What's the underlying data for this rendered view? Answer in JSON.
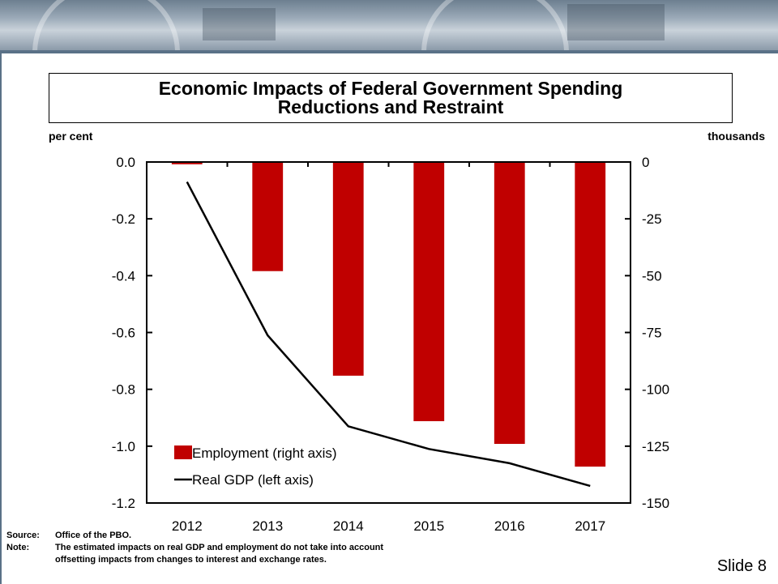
{
  "title_line1": "Economic Impacts of Federal Government Spending",
  "title_line2": "Reductions and Restraint",
  "left_unit": "per cent",
  "right_unit": "thousands",
  "source_label": "Source:",
  "source_text": "Office of the PBO.",
  "note_label": "Note:",
  "note_line1": "The estimated impacts on real GDP and employment do not take into account",
  "note_line2": "offsetting impacts from changes to interest and exchange rates.",
  "slide_label": "Slide 8",
  "chart_data": {
    "type": "bar",
    "categories": [
      "2012",
      "2013",
      "2014",
      "2015",
      "2016",
      "2017"
    ],
    "series": [
      {
        "name": "Employment (right axis)",
        "kind": "bar",
        "axis": "right",
        "color": "#c00000",
        "values": [
          -1,
          -48,
          -94,
          -114,
          -124,
          -134
        ]
      },
      {
        "name": "Real GDP (left axis)",
        "kind": "line",
        "axis": "left",
        "color": "#000000",
        "values": [
          -0.07,
          -0.61,
          -0.93,
          -1.01,
          -1.06,
          -1.14
        ]
      }
    ],
    "y_left": {
      "label": "per cent",
      "min": -1.2,
      "max": 0.0,
      "ticks": [
        "0.0",
        "-0.2",
        "-0.4",
        "-0.6",
        "-0.8",
        "-1.0",
        "-1.2"
      ]
    },
    "y_right": {
      "label": "thousands",
      "min": -150,
      "max": 0,
      "ticks": [
        "0",
        "-25",
        "-50",
        "-75",
        "-100",
        "-125",
        "-150"
      ]
    },
    "grid": false,
    "legend_position": "bottom-left"
  }
}
